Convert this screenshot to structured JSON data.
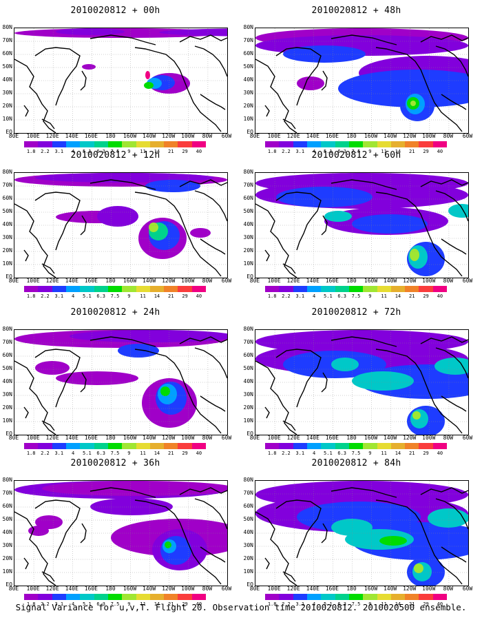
{
  "panels": [
    {
      "title": "2010020812 + 00h"
    },
    {
      "title": "2010020812 + 48h"
    },
    {
      "title": "2010020812 + 12h"
    },
    {
      "title": "2010020812 + 60h"
    },
    {
      "title": "2010020812 + 24h"
    },
    {
      "title": "2010020812 + 72h"
    },
    {
      "title": "2010020812 + 36h"
    },
    {
      "title": "2010020812 + 84h"
    }
  ],
  "lat_labels": [
    "80N",
    "70N",
    "60N",
    "50N",
    "40N",
    "30N",
    "20N",
    "10N",
    "EQ"
  ],
  "lon_labels": [
    "80E",
    "100E",
    "120E",
    "140E",
    "160E",
    "180",
    "160W",
    "140W",
    "120W",
    "100W",
    "80W",
    "60W"
  ],
  "colorbar": {
    "labels": [
      "1.8",
      "2.2",
      "3.1",
      "4",
      "5.1",
      "6.3",
      "7.5",
      "9",
      "11",
      "14",
      "21",
      "29",
      "40"
    ],
    "colors": [
      "#a000c8",
      "#8200dc",
      "#1e3cff",
      "#00a0ff",
      "#00c8c8",
      "#00d28c",
      "#00dc00",
      "#a0e632",
      "#e6dc32",
      "#e6af2d",
      "#f08228",
      "#fa3c3c",
      "#f00082"
    ]
  },
  "caption": "Signal Variance for u,v,T. Flight 20. Observation time 2010020812. 2010020500 ensemble."
}
